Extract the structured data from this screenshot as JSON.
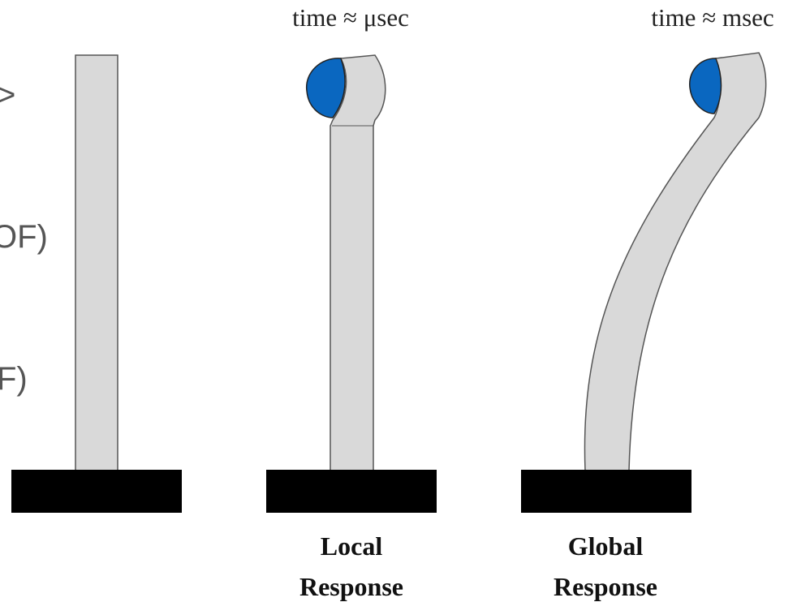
{
  "side_labels": [
    ">",
    "OF)",
    "F)"
  ],
  "local": {
    "time": "time ≈ μsec",
    "caption": [
      "Local",
      "Response"
    ]
  },
  "global": {
    "time": "time ≈ msec",
    "caption": [
      "Global",
      "Response"
    ]
  }
}
